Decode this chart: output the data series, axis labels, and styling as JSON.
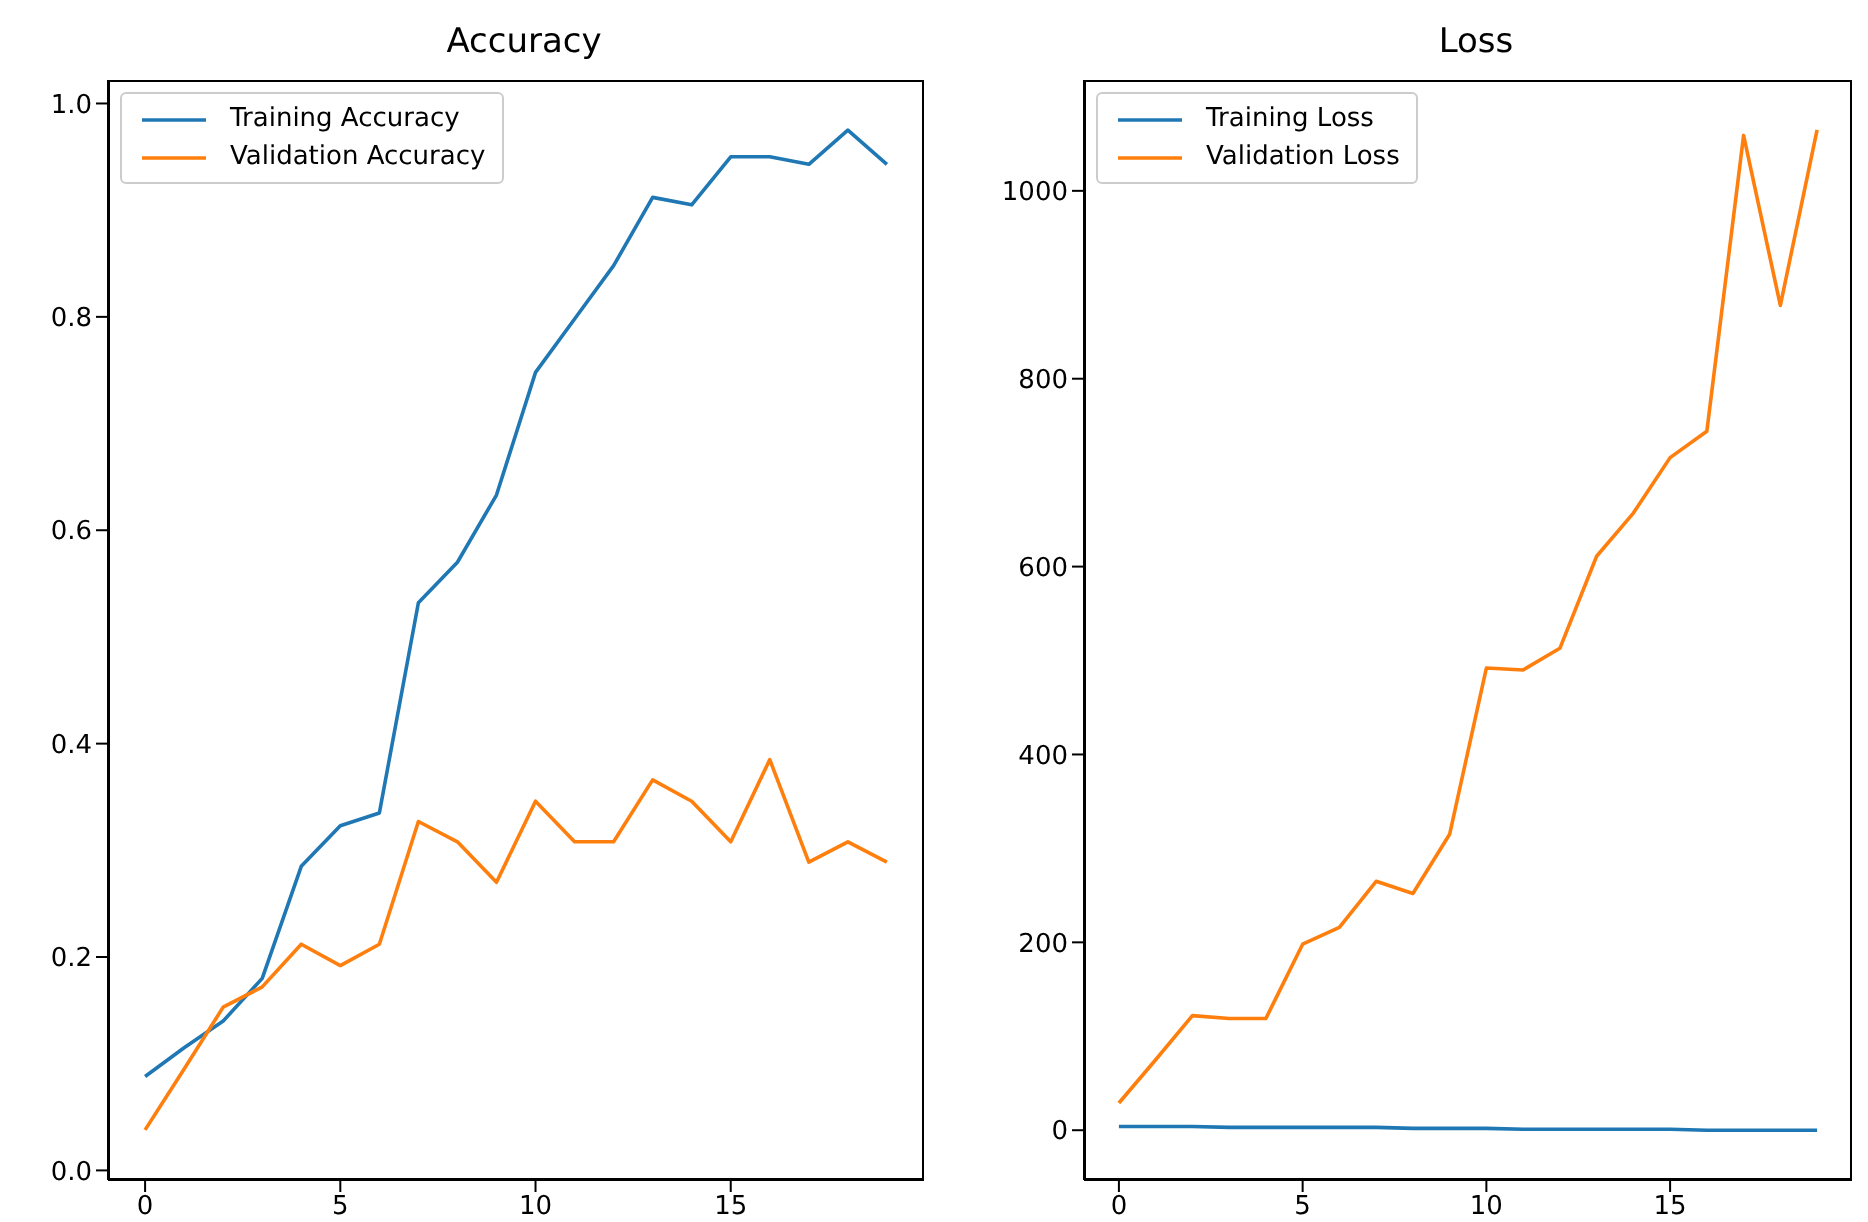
{
  "chart_data": [
    {
      "type": "line",
      "title": "Accuracy",
      "x": [
        0,
        1,
        2,
        3,
        4,
        5,
        6,
        7,
        8,
        9,
        10,
        11,
        12,
        13,
        14,
        15,
        16,
        17,
        18,
        19
      ],
      "xlim": [
        -0.95,
        19.95
      ],
      "xticks": [
        0,
        5,
        10,
        15
      ],
      "ylim": [
        -0.009,
        1.022
      ],
      "yticks": [
        {
          "value": 0,
          "label": "0.0"
        },
        0.2,
        0.4,
        0.6,
        0.8,
        {
          "value": 1,
          "label": "1.0"
        }
      ],
      "grid": false,
      "legend": "top left",
      "marker": "none",
      "line_style": "solid",
      "series": [
        {
          "name": "Training Accuracy",
          "color": "#1f77b4",
          "values": [
            0.088,
            0.115,
            0.14,
            0.18,
            0.285,
            0.323,
            0.335,
            0.532,
            0.57,
            0.633,
            0.748,
            0.798,
            0.848,
            0.912,
            0.905,
            0.95,
            0.95,
            0.943,
            0.975,
            0.943
          ]
        },
        {
          "name": "Validation Accuracy",
          "color": "#ff7f0e",
          "values": [
            0.038,
            0.095,
            0.153,
            0.172,
            0.212,
            0.192,
            0.212,
            0.327,
            0.308,
            0.27,
            0.346,
            0.308,
            0.308,
            0.366,
            0.346,
            0.308,
            0.385,
            0.289,
            0.308,
            0.289
          ]
        }
      ]
    },
    {
      "type": "line",
      "title": "Loss",
      "x": [
        0,
        1,
        2,
        3,
        4,
        5,
        6,
        7,
        8,
        9,
        10,
        11,
        12,
        13,
        14,
        15,
        16,
        17,
        18,
        19
      ],
      "xlim": [
        -0.95,
        19.95
      ],
      "xticks": [
        0,
        5,
        10,
        15
      ],
      "ylim": [
        -53,
        1118
      ],
      "yticks": [
        0,
        200,
        400,
        600,
        800,
        1000
      ],
      "grid": false,
      "legend": "top left",
      "marker": "none",
      "line_style": "solid",
      "series": [
        {
          "name": "Training Loss",
          "color": "#1f77b4",
          "values": [
            4,
            4,
            4,
            3,
            3,
            3,
            3,
            3,
            2,
            2,
            2,
            1,
            1,
            1,
            1,
            1,
            0,
            0,
            0,
            0
          ]
        },
        {
          "name": "Validation Loss",
          "color": "#ff7f0e",
          "values": [
            29,
            75,
            122,
            119,
            119,
            198,
            216,
            265,
            252,
            315,
            492,
            490,
            513,
            611,
            657,
            716,
            744,
            1059,
            878,
            1065
          ]
        }
      ]
    }
  ]
}
